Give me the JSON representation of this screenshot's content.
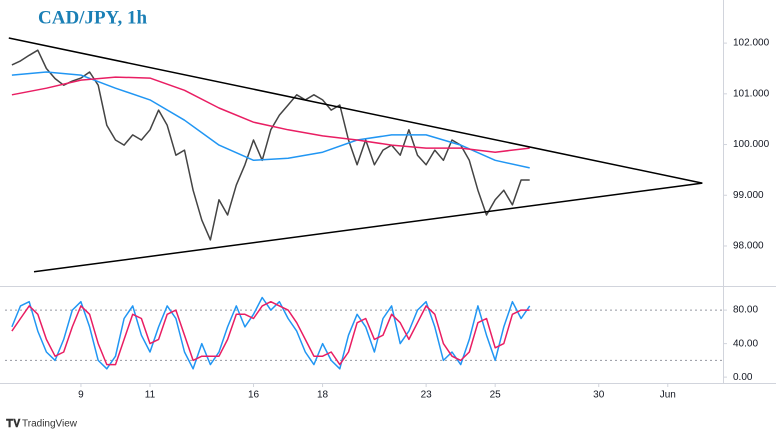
{
  "chart_data": [
    {
      "type": "line",
      "title": "CAD/JPY, 1h",
      "xlim": [
        -0.2,
        20.6
      ],
      "ylim": [
        97.27,
        102.85
      ],
      "yticks": [
        {
          "value": 102,
          "label": "102.000"
        },
        {
          "value": 101,
          "label": "101.000"
        },
        {
          "value": 100,
          "label": "100.000"
        },
        {
          "value": 99,
          "label": "99.000"
        },
        {
          "value": 98,
          "label": "98.000"
        }
      ],
      "series": [
        {
          "color": "#444444",
          "x": [
            0,
            0.25,
            0.5,
            0.75,
            1,
            1.25,
            1.5,
            1.75,
            2,
            2.25,
            2.5,
            2.75,
            3,
            3.25,
            3.5,
            3.75,
            4,
            4.25,
            4.5,
            4.75,
            5,
            5.25,
            5.5,
            5.75,
            6,
            6.25,
            6.5,
            6.75,
            7,
            7.25,
            7.5,
            7.75,
            8,
            8.25,
            8.5,
            8.75,
            9,
            9.25,
            9.5,
            9.75,
            10,
            10.25,
            10.5,
            10.75,
            11,
            11.25,
            11.5,
            11.75,
            12,
            12.25,
            12.5,
            12.75,
            13,
            13.25,
            13.5,
            13.75,
            14,
            14.25,
            14.5,
            14.75,
            15
          ],
          "values": [
            101.57,
            101.65,
            101.76,
            101.86,
            101.5,
            101.3,
            101.17,
            101.25,
            101.31,
            101.43,
            101.17,
            100.38,
            100.09,
            99.99,
            100.19,
            100.09,
            100.29,
            100.68,
            100.38,
            99.79,
            99.89,
            99.1,
            98.51,
            98.12,
            98.91,
            98.61,
            99.2,
            99.6,
            100.09,
            99.69,
            100.29,
            100.58,
            100.78,
            100.98,
            100.88,
            100.98,
            100.88,
            100.68,
            100.78,
            100.09,
            99.6,
            100.09,
            99.6,
            99.89,
            99.99,
            99.79,
            100.29,
            99.79,
            99.6,
            99.89,
            99.69,
            100.09,
            99.99,
            99.69,
            99.1,
            98.61,
            98.91,
            99.1,
            98.81,
            99.3,
            99.3
          ]
        },
        {
          "color": "#2196f3",
          "x": [
            0,
            1,
            2,
            3,
            4,
            5,
            6,
            7,
            8,
            9,
            10,
            11,
            12,
            13,
            14,
            15
          ],
          "values": [
            101.37,
            101.43,
            101.37,
            101.11,
            100.88,
            100.48,
            99.99,
            99.69,
            99.73,
            99.85,
            100.09,
            100.19,
            100.19,
            99.99,
            99.69,
            99.54
          ]
        },
        {
          "color": "#e91e63",
          "x": [
            0,
            1,
            2,
            3,
            4,
            5,
            6,
            7,
            8,
            9,
            10,
            11,
            12,
            13,
            14,
            15
          ],
          "values": [
            100.98,
            101.11,
            101.27,
            101.33,
            101.31,
            101.07,
            100.72,
            100.44,
            100.29,
            100.17,
            100.09,
            99.99,
            99.93,
            99.93,
            99.85,
            99.93
          ]
        },
        {
          "color": "#000000",
          "x": [
            -0.09,
            20.0
          ],
          "values": [
            102.1,
            99.24
          ]
        },
        {
          "color": "#000000",
          "x": [
            0.64,
            20.0
          ],
          "values": [
            97.49,
            99.24
          ]
        }
      ]
    },
    {
      "type": "line",
      "xlim": [
        -0.2,
        20.6
      ],
      "ylim": [
        -7,
        104
      ],
      "xticks": [
        {
          "value": 2,
          "label": "9"
        },
        {
          "value": 4,
          "label": "11"
        },
        {
          "value": 7,
          "label": "16"
        },
        {
          "value": 9,
          "label": "18"
        },
        {
          "value": 12,
          "label": "23"
        },
        {
          "value": 14,
          "label": "25"
        },
        {
          "value": 17,
          "label": "30"
        },
        {
          "value": 19,
          "label": "Jun"
        }
      ],
      "yticks": [
        {
          "value": 80,
          "label": "80.00"
        },
        {
          "value": 40,
          "label": "40.00"
        },
        {
          "value": 0,
          "label": "0.00"
        }
      ],
      "bands": [
        80,
        20
      ],
      "series": [
        {
          "color": "#2196f3",
          "x": [
            0,
            0.25,
            0.5,
            0.75,
            1,
            1.25,
            1.5,
            1.75,
            2,
            2.25,
            2.5,
            2.75,
            3,
            3.25,
            3.5,
            3.75,
            4,
            4.25,
            4.5,
            4.75,
            5,
            5.25,
            5.5,
            5.75,
            6,
            6.25,
            6.5,
            6.75,
            7,
            7.25,
            7.5,
            7.75,
            8,
            8.25,
            8.5,
            8.75,
            9,
            9.25,
            9.5,
            9.75,
            10,
            10.25,
            10.5,
            10.75,
            11,
            11.25,
            11.5,
            11.75,
            12,
            12.25,
            12.5,
            12.75,
            13,
            13.25,
            13.5,
            13.75,
            14,
            14.25,
            14.5,
            14.75,
            15
          ],
          "values": [
            60,
            85,
            90,
            55,
            30,
            20,
            45,
            80,
            90,
            60,
            20,
            10,
            25,
            70,
            85,
            50,
            30,
            60,
            85,
            70,
            30,
            10,
            40,
            15,
            30,
            60,
            85,
            60,
            75,
            95,
            80,
            90,
            70,
            55,
            30,
            15,
            40,
            20,
            10,
            50,
            75,
            60,
            30,
            70,
            85,
            40,
            55,
            80,
            90,
            60,
            20,
            30,
            15,
            45,
            85,
            50,
            20,
            60,
            90,
            70,
            85
          ]
        },
        {
          "color": "#e91e63",
          "x": [
            0,
            0.25,
            0.5,
            0.75,
            1,
            1.25,
            1.5,
            1.75,
            2,
            2.25,
            2.5,
            2.75,
            3,
            3.25,
            3.5,
            3.75,
            4,
            4.25,
            4.5,
            4.75,
            5,
            5.25,
            5.5,
            5.75,
            6,
            6.25,
            6.5,
            6.75,
            7,
            7.25,
            7.5,
            7.75,
            8,
            8.25,
            8.5,
            8.75,
            9,
            9.25,
            9.5,
            9.75,
            10,
            10.25,
            10.5,
            10.75,
            11,
            11.25,
            11.5,
            11.75,
            12,
            12.25,
            12.5,
            12.75,
            13,
            13.25,
            13.5,
            13.75,
            14,
            14.25,
            14.5,
            14.75,
            15
          ],
          "values": [
            55,
            70,
            85,
            75,
            45,
            25,
            30,
            60,
            85,
            75,
            40,
            15,
            15,
            45,
            75,
            70,
            40,
            45,
            75,
            80,
            50,
            20,
            25,
            25,
            25,
            45,
            75,
            75,
            70,
            85,
            90,
            85,
            80,
            65,
            45,
            25,
            25,
            30,
            15,
            30,
            65,
            70,
            45,
            50,
            75,
            65,
            45,
            65,
            85,
            75,
            40,
            25,
            20,
            30,
            65,
            70,
            35,
            40,
            75,
            80,
            80
          ]
        }
      ]
    }
  ],
  "footer": {
    "brand": "TradingView"
  }
}
